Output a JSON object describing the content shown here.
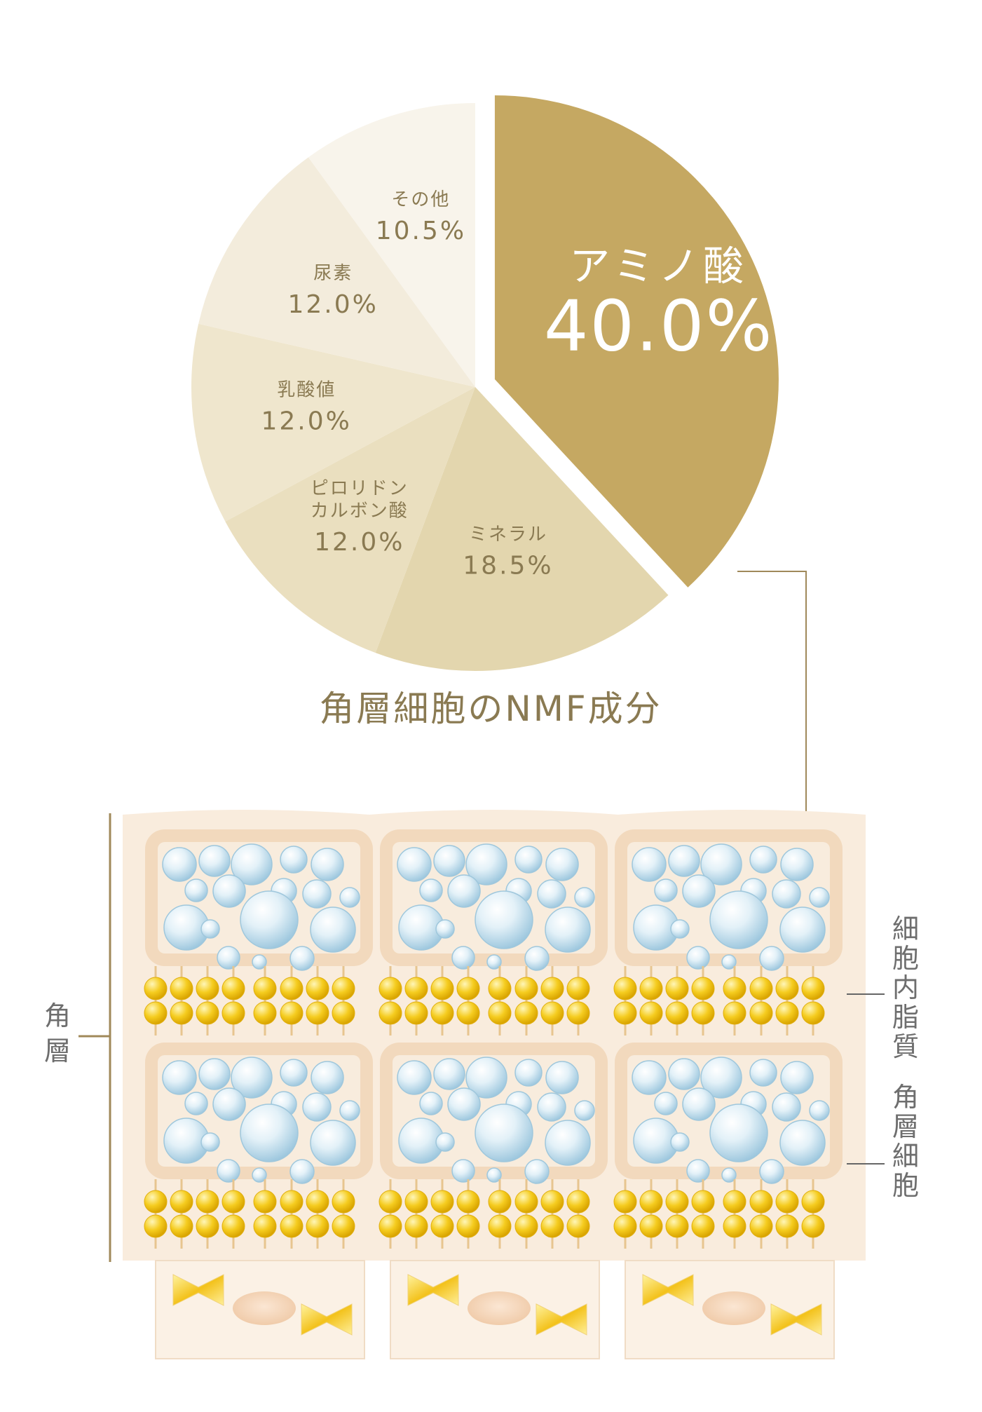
{
  "chart_data": {
    "type": "pie",
    "title": "角層細胞のNMF成分",
    "slices": [
      {
        "label": "アミノ酸",
        "value": 40.0,
        "value_label": "40.0%",
        "color": "#c5a862",
        "exploded": true
      },
      {
        "label": "ミネラル",
        "value": 18.5,
        "value_label": "18.5%",
        "color": "#e3d6ae"
      },
      {
        "label": "ピロリドンカルボン酸",
        "label_lines": [
          "ピロリドン",
          "カルボン酸"
        ],
        "value": 12.0,
        "value_label": "12.0%",
        "color": "#eadfbf"
      },
      {
        "label": "乳酸値",
        "value": 12.0,
        "value_label": "12.0%",
        "color": "#efe6cd"
      },
      {
        "label": "尿素",
        "value": 12.0,
        "value_label": "12.0%",
        "color": "#f3ecdc"
      },
      {
        "label": "その他",
        "value": 10.5,
        "value_label": "10.5%",
        "color": "#f8f4eb"
      }
    ]
  },
  "diagram": {
    "left_label": "角層",
    "right_labels": {
      "lipid": "細胞内脂質",
      "cell": "角層細胞"
    }
  },
  "colors": {
    "text_dark": "#8a7a52",
    "text_light": "#ffffff",
    "line": "#a0895a",
    "arrow": "#c5a862",
    "cell_outer": "#f9ecdd",
    "cell_frame": "#f2d9bd",
    "cell_inner": "#f8ecdd",
    "lipid": "#f3c61f",
    "bubble": "#bcdcec"
  }
}
